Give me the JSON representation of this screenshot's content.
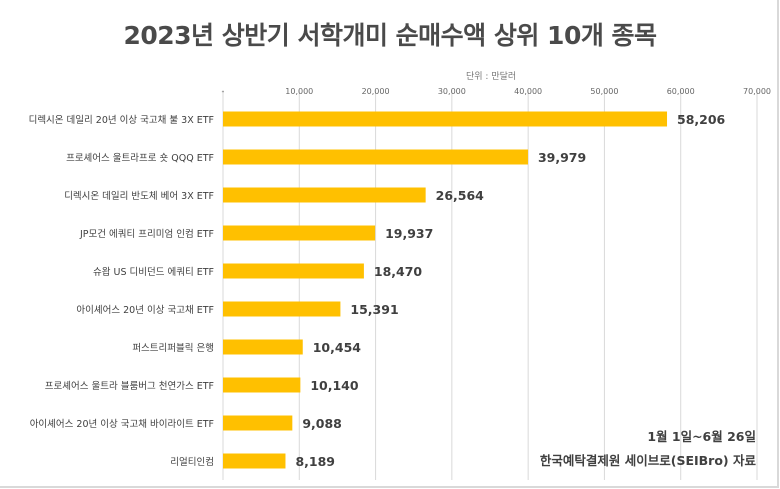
{
  "chart_data": {
    "type": "bar",
    "orientation": "horizontal",
    "title": "2023년 상반기 서학개미 순매수액 상위 10개 종목",
    "unit_label": "단위 : 만달러",
    "categories": [
      "디렉시온 데일리 20년 이상 국고채 불 3X ETF",
      "프로셰어스 울트라프로 숏 QQQ ETF",
      "디렉시온 데일리 반도체 베어 3X ETF",
      "JP모건 에쿼티 프리미엄 인컴 ETF",
      "슈왑 US 디비던드 에쿼티 ETF",
      "아이셰어스 20년 이상 국고채 ETF",
      "퍼스트리퍼블릭 은행",
      "프로셰어스 울트라 블룸버그 천연가스 ETF",
      "아이셰어스 20년 이상 국고채 바이라이트 ETF",
      "리얼티인컴"
    ],
    "values": [
      58206,
      39979,
      26564,
      19937,
      18470,
      15391,
      10454,
      10140,
      9088,
      8189
    ],
    "value_labels": [
      "58,206",
      "39,979",
      "26,564",
      "19,937",
      "18,470",
      "15,391",
      "10,454",
      "10,140",
      "9,088",
      "8,189"
    ],
    "xlim": [
      0,
      70000
    ],
    "x_ticks": [
      0,
      10000,
      20000,
      30000,
      40000,
      50000,
      60000,
      70000
    ],
    "x_tick_labels": [
      "-",
      "10,000",
      "20,000",
      "30,000",
      "40,000",
      "50,000",
      "60,000",
      "70,000"
    ],
    "x_axis_position": "top",
    "grid": true,
    "bar_color": "#FFC000"
  },
  "notes": {
    "period": "1월 1일~6월 26일",
    "source": "한국예탁결제원 세이브로(SEIBro) 자료"
  }
}
